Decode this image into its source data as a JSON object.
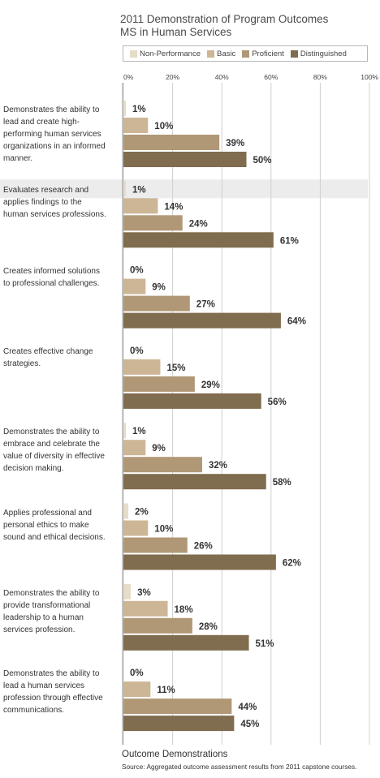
{
  "chart_data": {
    "type": "bar",
    "orientation": "horizontal",
    "title": "2011 Demonstration of Program Outcomes",
    "subtitle": "MS in Human Services",
    "xlabel": "Outcome Demonstrations",
    "ylabel": "",
    "xlim": [
      0,
      100
    ],
    "x_ticks": [
      "0%",
      "20%",
      "40%",
      "60%",
      "80%",
      "100%"
    ],
    "legend_position": "top",
    "grid": true,
    "source": "Source: Aggregated outcome assessment results from 2011 capstone courses.",
    "categories": [
      "Demonstrates the ability to lead and create high-performing human services organizations in an informed manner.",
      "Evaluates research and applies findings to the human services professions.",
      "Creates informed solutions to professional challenges.",
      "Creates effective change strategies.",
      "Demonstrates the ability to embrace and celebrate the value of diversity in effective decision making.",
      "Applies professional and personal ethics to make sound and ethical decisions.",
      "Demonstrates the ability to provide transformational leadership to a human services profession.",
      "Demonstrates the ability to lead a human services profession through effective communications."
    ],
    "category_lines": [
      [
        "Demonstrates the ability to",
        "lead and create high-",
        "performing human services",
        "organizations in an informed",
        "manner."
      ],
      [
        "Evaluates research and",
        "applies findings to the",
        "human services professions."
      ],
      [
        "Creates informed solutions",
        "to professional challenges."
      ],
      [
        "Creates effective change",
        "strategies."
      ],
      [
        "Demonstrates the ability to",
        "embrace and celebrate the",
        "value of diversity in effective",
        "decision making."
      ],
      [
        "Applies professional and",
        "personal ethics to make",
        "sound and ethical decisions."
      ],
      [
        "Demonstrates the ability to",
        "provide transformational",
        "leadership to a human",
        "services profession."
      ],
      [
        "Demonstrates the ability to",
        "lead a human services",
        "profession through effective",
        "communications."
      ]
    ],
    "series": [
      {
        "name": "Non-Performance",
        "color": "#e6dcc8",
        "values": [
          1,
          1,
          0,
          0,
          1,
          2,
          3,
          0
        ]
      },
      {
        "name": "Basic",
        "color": "#cdb696",
        "values": [
          10,
          14,
          9,
          15,
          9,
          10,
          18,
          11
        ]
      },
      {
        "name": "Proficient",
        "color": "#b09876",
        "values": [
          39,
          24,
          27,
          29,
          32,
          26,
          28,
          44
        ]
      },
      {
        "name": "Distinguished",
        "color": "#806c4e",
        "values": [
          50,
          61,
          64,
          56,
          58,
          62,
          51,
          45
        ]
      }
    ],
    "value_labels": [
      [
        "1%",
        "10%",
        "39%",
        "50%"
      ],
      [
        "1%",
        "14%",
        "24%",
        "61%"
      ],
      [
        "0%",
        "9%",
        "27%",
        "64%"
      ],
      [
        "0%",
        "15%",
        "29%",
        "56%"
      ],
      [
        "1%",
        "9%",
        "32%",
        "58%"
      ],
      [
        "2%",
        "10%",
        "26%",
        "62%"
      ],
      [
        "3%",
        "18%",
        "28%",
        "51%"
      ],
      [
        "0%",
        "11%",
        "44%",
        "45%"
      ]
    ],
    "highlighted_category": 1,
    "highlight_color": "#ececec",
    "grid_color": "#d0d0d0"
  }
}
